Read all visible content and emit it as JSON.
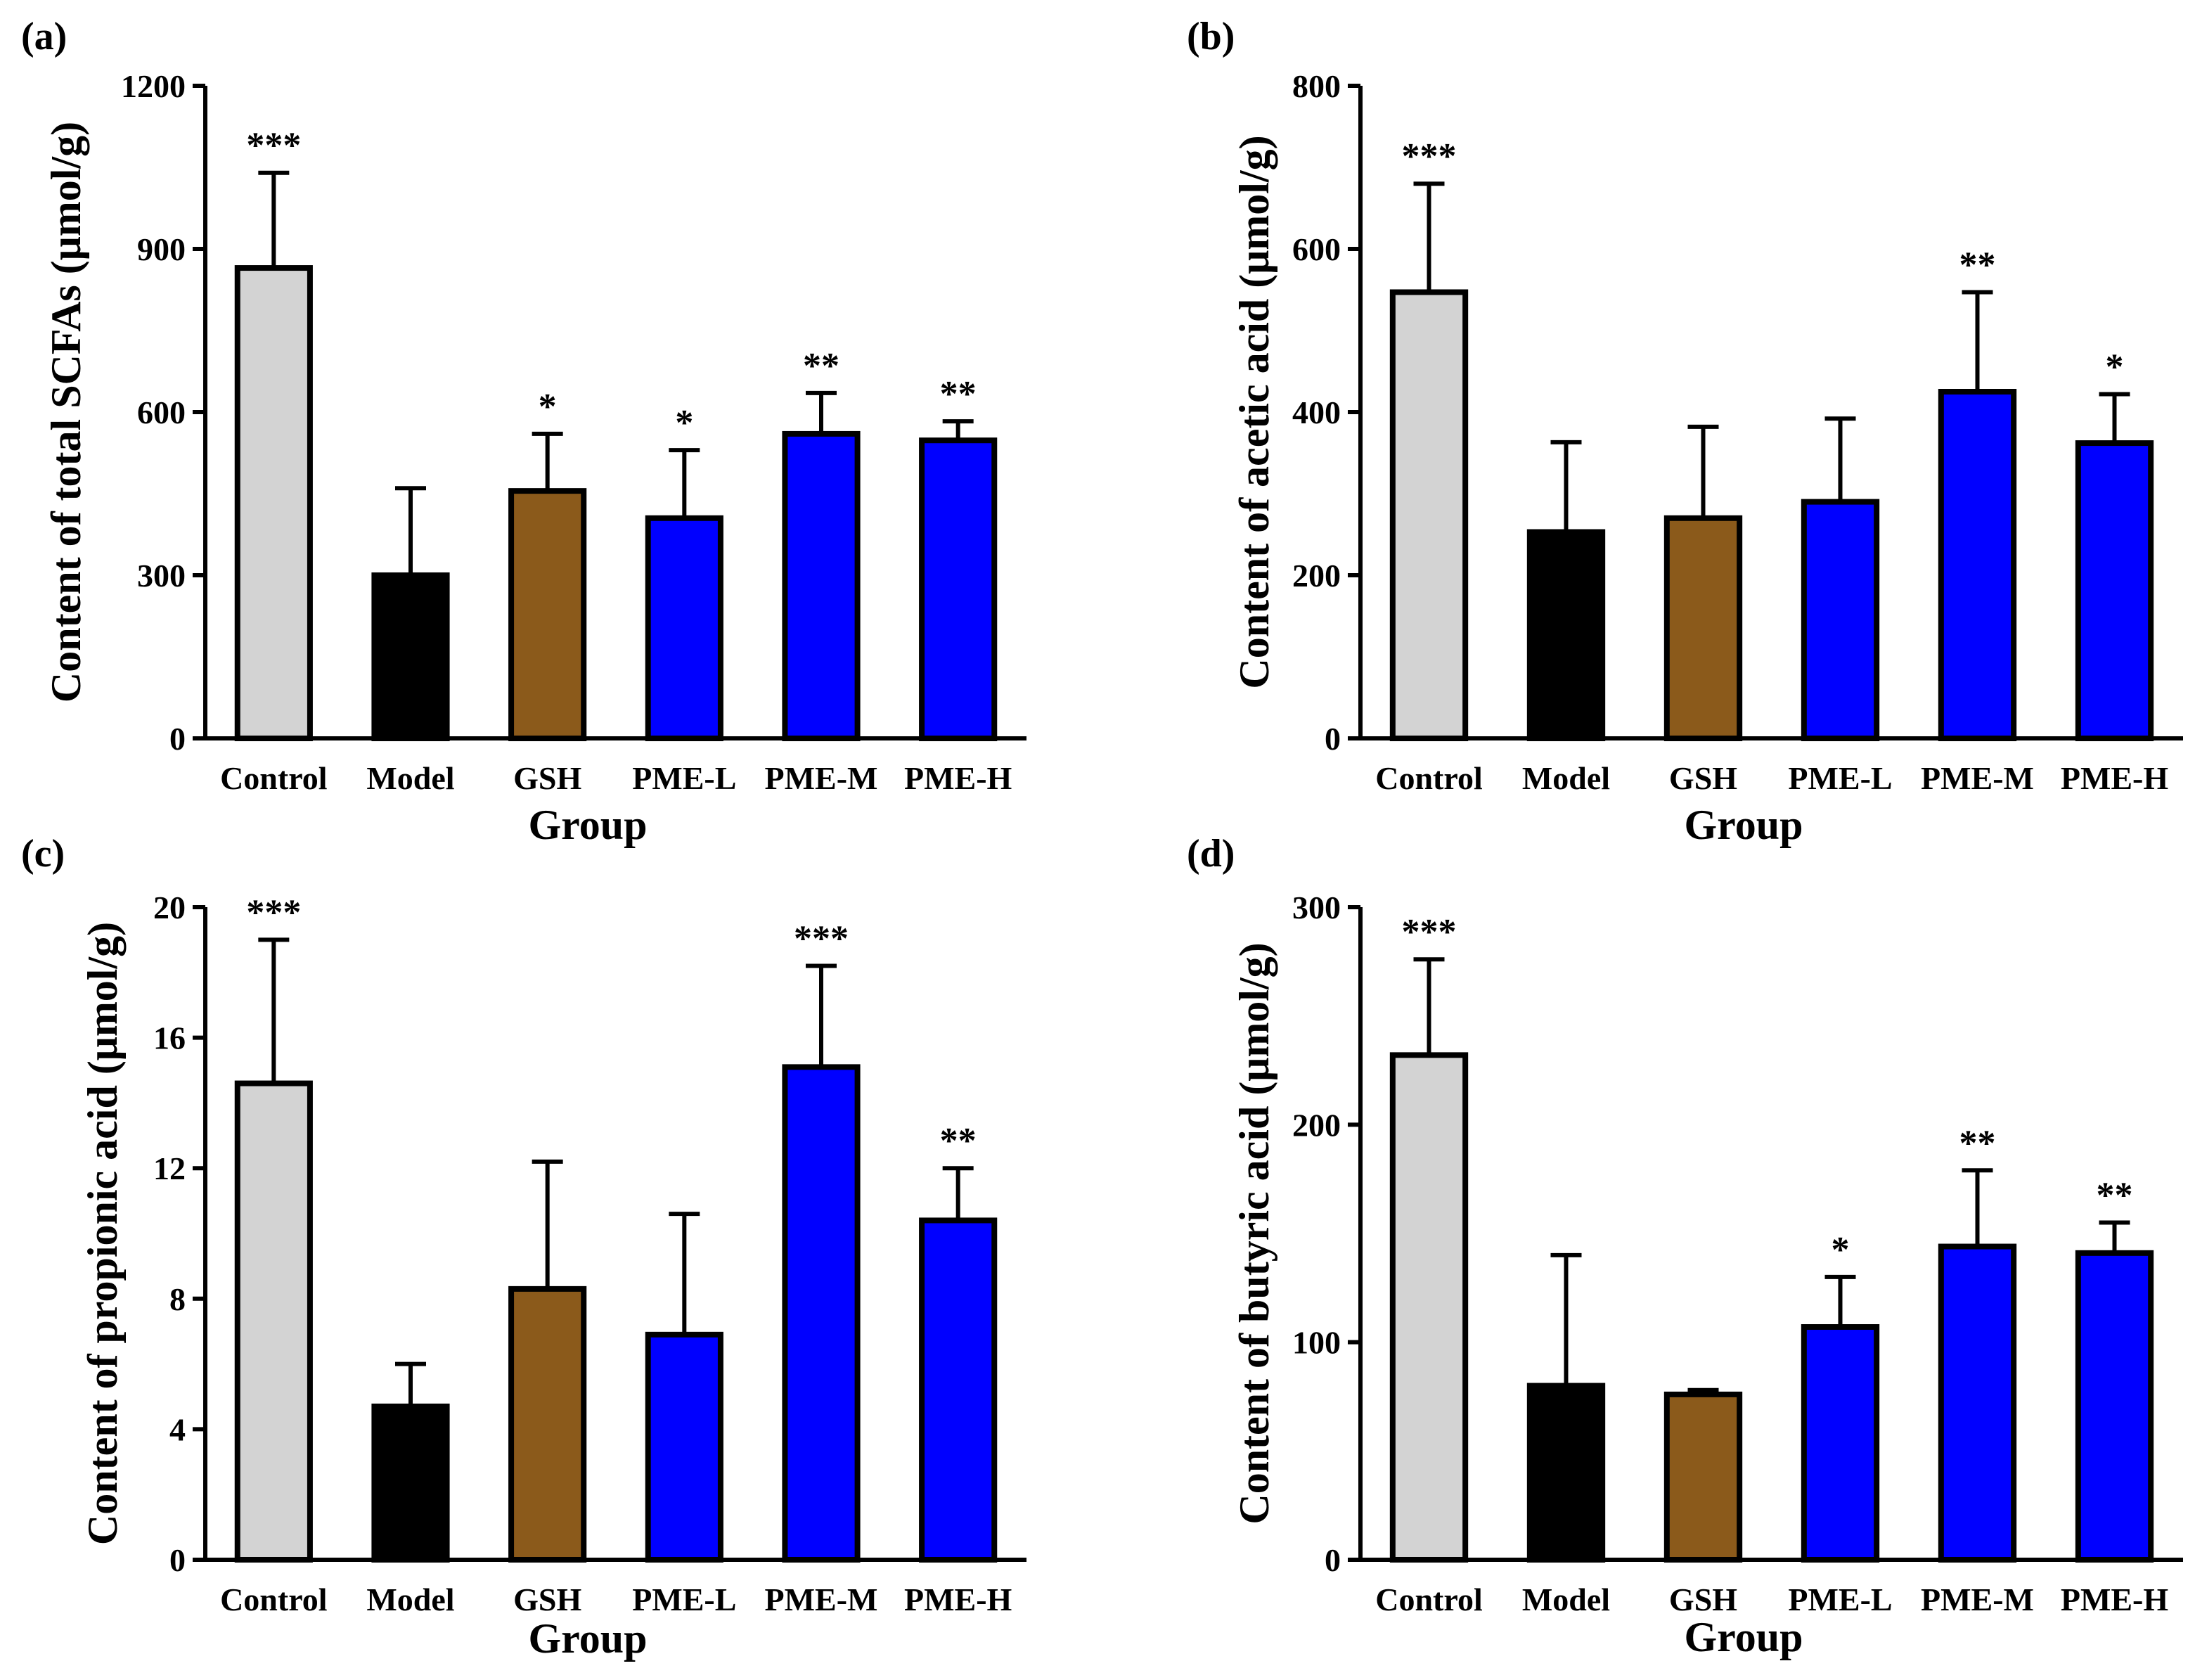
{
  "chart_data": [
    {
      "type": "bar",
      "panel_label": "(a)",
      "categories": [
        "Control",
        "Model",
        "GSH",
        "PME-L",
        "PME-M",
        "PME-H"
      ],
      "values": [
        865,
        300,
        455,
        405,
        560,
        548
      ],
      "error": [
        175,
        160,
        105,
        125,
        75,
        35
      ],
      "significance": [
        "***",
        "",
        "*",
        "*",
        "**",
        "**"
      ],
      "colors": [
        "#d3d3d3",
        "#000000",
        "#8b5a1b",
        "#0000ff",
        "#0000ff",
        "#0000ff"
      ],
      "xlabel": "Group",
      "ylabel": "Content of total SCFAs (μmol/g)",
      "ylim": [
        0,
        1200
      ],
      "yticks": [
        "0",
        "300",
        "600",
        "900",
        "1200"
      ]
    },
    {
      "type": "bar",
      "panel_label": "(b)",
      "categories": [
        "Control",
        "Model",
        "GSH",
        "PME-L",
        "PME-M",
        "PME-H"
      ],
      "values": [
        547,
        253,
        270,
        290,
        425,
        362
      ],
      "error": [
        133,
        110,
        112,
        102,
        122,
        60
      ],
      "significance": [
        "***",
        "",
        "",
        "",
        "**",
        "*"
      ],
      "colors": [
        "#d3d3d3",
        "#000000",
        "#8b5a1b",
        "#0000ff",
        "#0000ff",
        "#0000ff"
      ],
      "xlabel": "Group",
      "ylabel": "Content of acetic acid (μmol/g)",
      "ylim": [
        0,
        800
      ],
      "yticks": [
        "0",
        "200",
        "400",
        "600",
        "800"
      ]
    },
    {
      "type": "bar",
      "panel_label": "(c)",
      "categories": [
        "Control",
        "Model",
        "GSH",
        "PME-L",
        "PME-M",
        "PME-H"
      ],
      "values": [
        14.6,
        4.7,
        8.3,
        6.9,
        15.1,
        10.4
      ],
      "error": [
        4.4,
        1.3,
        3.9,
        3.7,
        3.1,
        1.6
      ],
      "significance": [
        "***",
        "",
        "",
        "",
        "***",
        "**"
      ],
      "colors": [
        "#d3d3d3",
        "#000000",
        "#8b5a1b",
        "#0000ff",
        "#0000ff",
        "#0000ff"
      ],
      "xlabel": "Group",
      "ylabel": "Content of propionic acid (μmol/g)",
      "ylim": [
        0,
        20
      ],
      "yticks": [
        "0",
        "4",
        "8",
        "12",
        "16",
        "20"
      ]
    },
    {
      "type": "bar",
      "panel_label": "(d)",
      "categories": [
        "Control",
        "Model",
        "GSH",
        "PME-L",
        "PME-M",
        "PME-H"
      ],
      "values": [
        232,
        80,
        76,
        107,
        144,
        141
      ],
      "error": [
        44,
        60,
        2,
        23,
        35,
        14
      ],
      "significance": [
        "***",
        "",
        "",
        "*",
        "**",
        "**"
      ],
      "colors": [
        "#d3d3d3",
        "#000000",
        "#8b5a1b",
        "#0000ff",
        "#0000ff",
        "#0000ff"
      ],
      "xlabel": "Group",
      "ylabel": "Content of butyric acid (μmol/g)",
      "ylim": [
        0,
        300
      ],
      "yticks": [
        "0",
        "100",
        "200",
        "300"
      ]
    }
  ]
}
